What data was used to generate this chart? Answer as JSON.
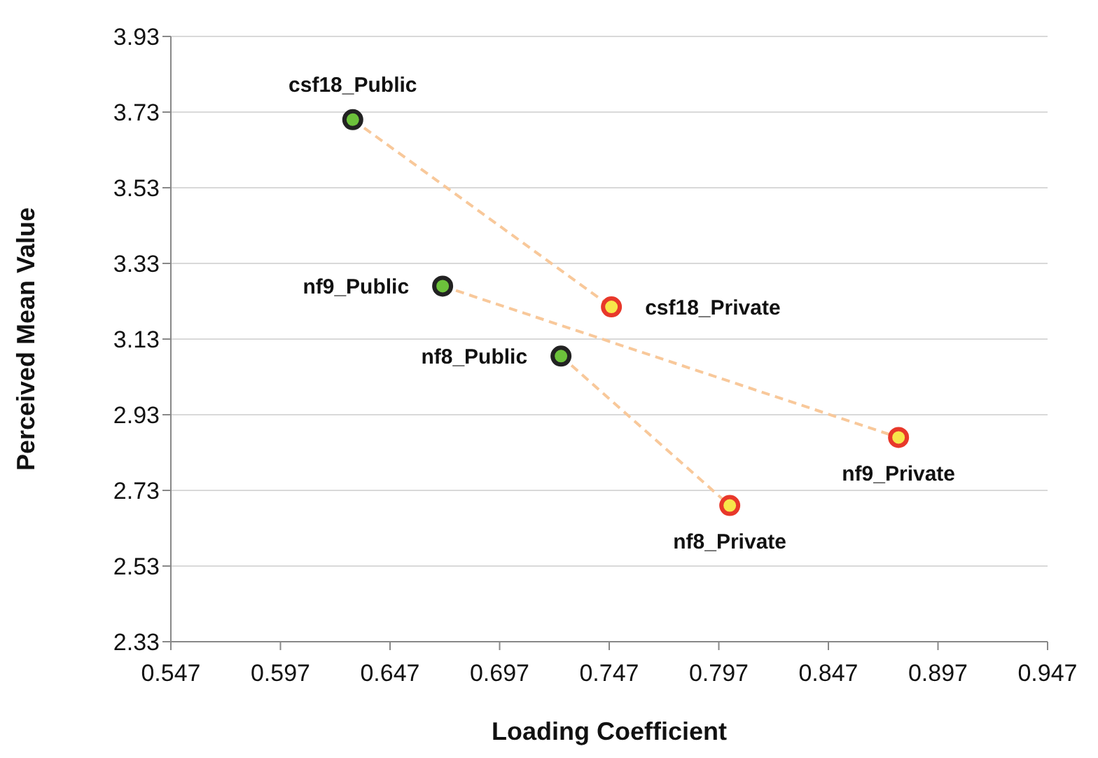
{
  "chart_data": {
    "type": "scatter",
    "xlabel": "Loading Coefficient",
    "ylabel": "Perceived Mean Value",
    "xlim": [
      0.547,
      0.947
    ],
    "xticks": [
      0.547,
      0.597,
      0.647,
      0.697,
      0.747,
      0.797,
      0.847,
      0.897,
      0.947
    ],
    "ylim": [
      2.33,
      3.93
    ],
    "yticks": [
      2.33,
      2.53,
      2.73,
      2.93,
      3.13,
      3.33,
      3.53,
      3.73,
      3.93
    ],
    "grid": "y",
    "marker": "circle",
    "series": [
      {
        "type": "line",
        "color": "#f8c89a",
        "line_style": "dashed",
        "marker": "none",
        "x": [
          0.63,
          0.748
        ],
        "values": [
          3.71,
          3.215
        ]
      },
      {
        "type": "line",
        "color": "#f8c89a",
        "line_style": "dashed",
        "marker": "none",
        "x": [
          0.671,
          0.879
        ],
        "values": [
          3.27,
          2.87
        ]
      },
      {
        "type": "line",
        "color": "#f8c89a",
        "line_style": "dashed",
        "marker": "none",
        "x": [
          0.725,
          0.802
        ],
        "values": [
          3.085,
          2.69
        ]
      },
      {
        "type": "scatter",
        "color": "#6cc13b",
        "x": [
          0.63,
          0.671,
          0.725
        ],
        "values": [
          3.71,
          3.27,
          3.085
        ]
      },
      {
        "type": "scatter",
        "color": "#f7e64a",
        "x": [
          0.748,
          0.879,
          0.802
        ],
        "values": [
          3.215,
          2.87,
          2.69
        ]
      }
    ],
    "annotations": [
      {
        "text": "csf18_Public",
        "x": 0.63,
        "y": 3.71
      },
      {
        "text": "csf18_Private",
        "x": 0.748,
        "y": 3.215
      },
      {
        "text": "nf9_Public",
        "x": 0.671,
        "y": 3.27
      },
      {
        "text": "nf9_Private",
        "x": 0.879,
        "y": 2.87
      },
      {
        "text": "nf8_Public",
        "x": 0.725,
        "y": 3.085
      },
      {
        "text": "nf8_Private",
        "x": 0.802,
        "y": 2.69
      }
    ]
  }
}
